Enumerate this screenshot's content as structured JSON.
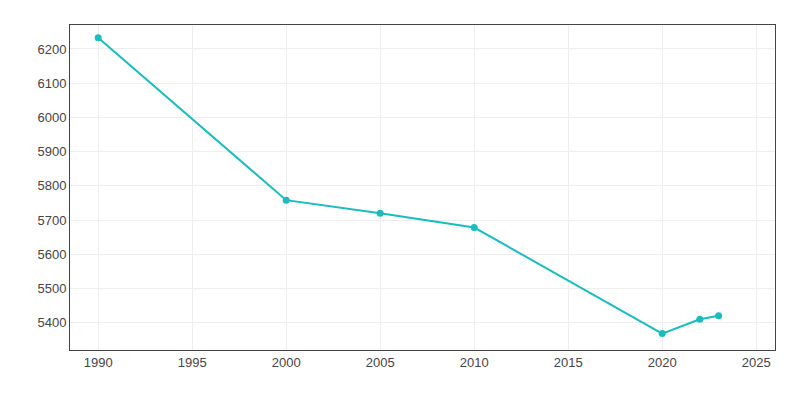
{
  "chart_data": {
    "type": "line",
    "x": [
      1990,
      2000,
      2005,
      2010,
      2020,
      2022,
      2023
    ],
    "values": [
      6233,
      5758,
      5720,
      5678,
      5368,
      5410,
      5420
    ],
    "color": "#1ABCBC",
    "marker": "circle",
    "xlim": [
      1988.5,
      2026
    ],
    "xticks": [
      1990,
      1995,
      2000,
      2005,
      2010,
      2015,
      2020,
      2025
    ],
    "ylim": [
      5320,
      6270
    ],
    "yticks": [
      5400,
      5500,
      5600,
      5700,
      5800,
      5900,
      6000,
      6100,
      6200
    ],
    "grid": true
  }
}
